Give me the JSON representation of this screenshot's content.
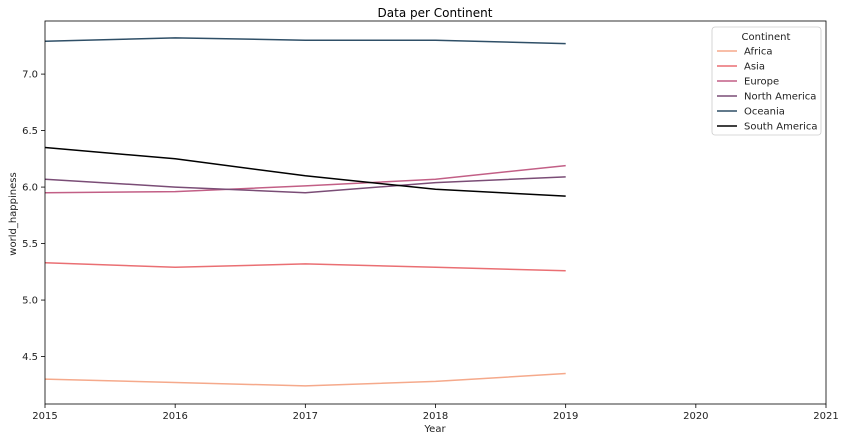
{
  "chart_data": {
    "type": "line",
    "title": "Data per Continent",
    "xlabel": "Year",
    "ylabel": "world_happiness",
    "xlim": [
      2015,
      2021
    ],
    "ylim": [
      4.08,
      7.47
    ],
    "x_ticks": [
      2015,
      2016,
      2017,
      2018,
      2019,
      2020,
      2021
    ],
    "y_ticks": [
      4.5,
      5.0,
      5.5,
      6.0,
      6.5,
      7.0
    ],
    "y_tick_labels": [
      "4.5",
      "5.0",
      "5.5",
      "6.0",
      "6.5",
      "7.0"
    ],
    "grid": false,
    "legend": {
      "title": "Continent",
      "placement": "top-right"
    },
    "x": [
      2015,
      2016,
      2017,
      2018,
      2019
    ],
    "series": [
      {
        "name": "Africa",
        "color": "#f5a98b",
        "values": [
          4.3,
          4.27,
          4.24,
          4.28,
          4.35
        ]
      },
      {
        "name": "Asia",
        "color": "#ea6f73",
        "values": [
          5.33,
          5.29,
          5.32,
          5.29,
          5.26
        ]
      },
      {
        "name": "Europe",
        "color": "#c25f86",
        "values": [
          5.95,
          5.96,
          6.01,
          6.07,
          6.19
        ]
      },
      {
        "name": "North America",
        "color": "#7a4d76",
        "values": [
          6.07,
          6.0,
          5.95,
          6.04,
          6.09
        ]
      },
      {
        "name": "Oceania",
        "color": "#2f4f67",
        "values": [
          7.29,
          7.32,
          7.3,
          7.3,
          7.27
        ]
      },
      {
        "name": "South America",
        "color": "#000000",
        "values": [
          6.35,
          6.25,
          6.1,
          5.98,
          5.92
        ]
      }
    ]
  }
}
